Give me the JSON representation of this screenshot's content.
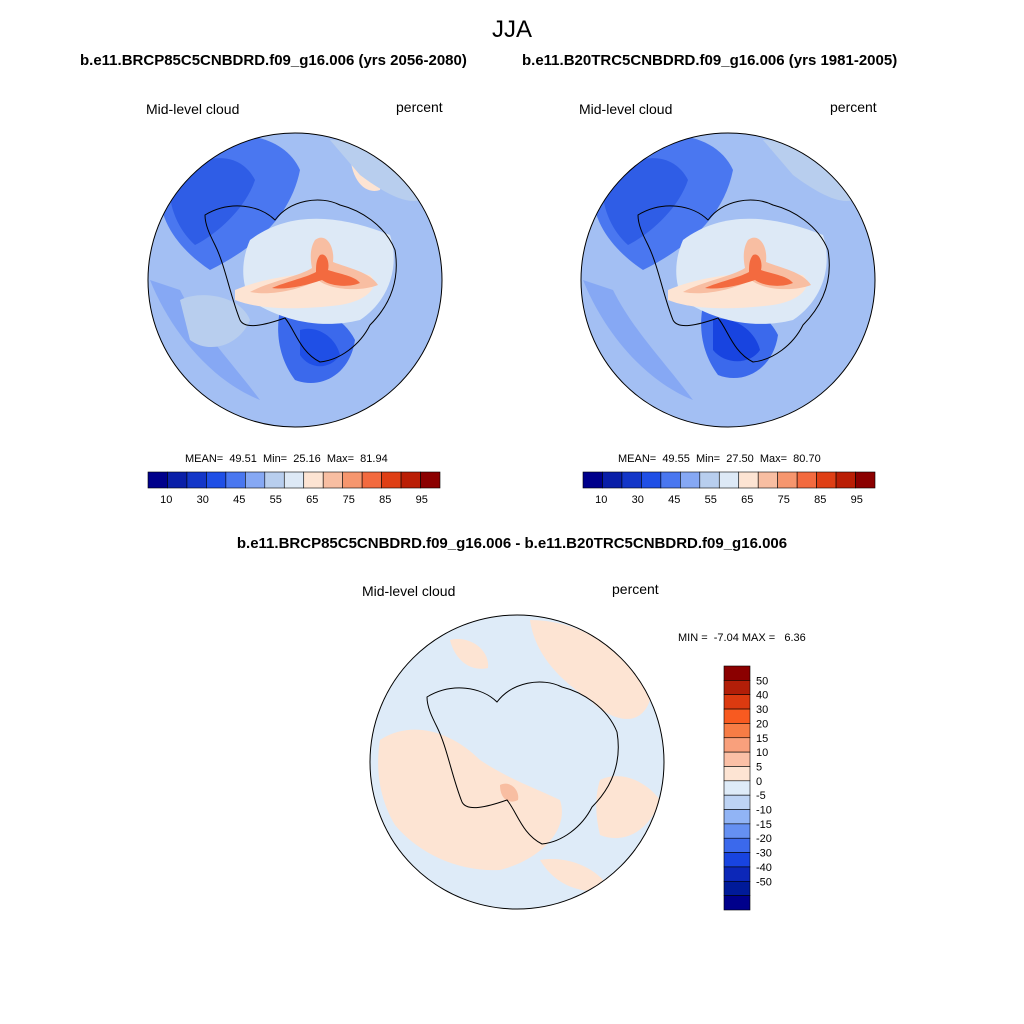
{
  "figure": {
    "season": "JJA",
    "panels": [
      {
        "title": "b.e11.BRCP85C5CNBDRD.f09_g16.006 (yrs 2056-2080)",
        "variable": "Mid-level cloud",
        "units": "percent",
        "stats_text": "MEAN=  49.51  Min=  25.16  Max=  81.94"
      },
      {
        "title": "b.e11.B20TRC5CNBDRD.f09_g16.006 (yrs 1981-2005)",
        "variable": "Mid-level cloud",
        "units": "percent",
        "stats_text": "MEAN=  49.55  Min=  27.50  Max=  80.70"
      }
    ],
    "difference": {
      "title": "b.e11.BRCP85C5CNBDRD.f09_g16.006 - b.e11.B20TRC5CNBDRD.f09_g16.006",
      "variable": "Mid-level cloud",
      "units": "percent",
      "stats_text": "MIN =  -7.04 MAX =   6.36"
    }
  },
  "colorbar_field": {
    "colors": [
      "#00008b",
      "#0a1fa8",
      "#1336c8",
      "#1f4fe6",
      "#4a77f0",
      "#86a8f4",
      "#b8ceee",
      "#dde9f6",
      "#fde4d3",
      "#f8bea2",
      "#f6966e",
      "#f36a3f",
      "#df3f15",
      "#ba1e05",
      "#8b0000"
    ],
    "tick_labels": [
      "10",
      "30",
      "45",
      "55",
      "65",
      "75",
      "85",
      "95"
    ]
  },
  "colorbar_diff": {
    "colors": [
      "#8b0000",
      "#b21e08",
      "#dc3a10",
      "#f85a20",
      "#f77c45",
      "#f9a07c",
      "#fbc0a6",
      "#fde4d3",
      "#deebf8",
      "#bdd3f4",
      "#91b4f5",
      "#6590f2",
      "#3b69ec",
      "#1844e0",
      "#0c27b8",
      "#001a99",
      "#00008b"
    ],
    "tick_labels": [
      "50",
      "40",
      "30",
      "20",
      "15",
      "10",
      "5",
      "0",
      "-5",
      "-10",
      "-15",
      "-20",
      "-30",
      "-40",
      "-50"
    ]
  }
}
